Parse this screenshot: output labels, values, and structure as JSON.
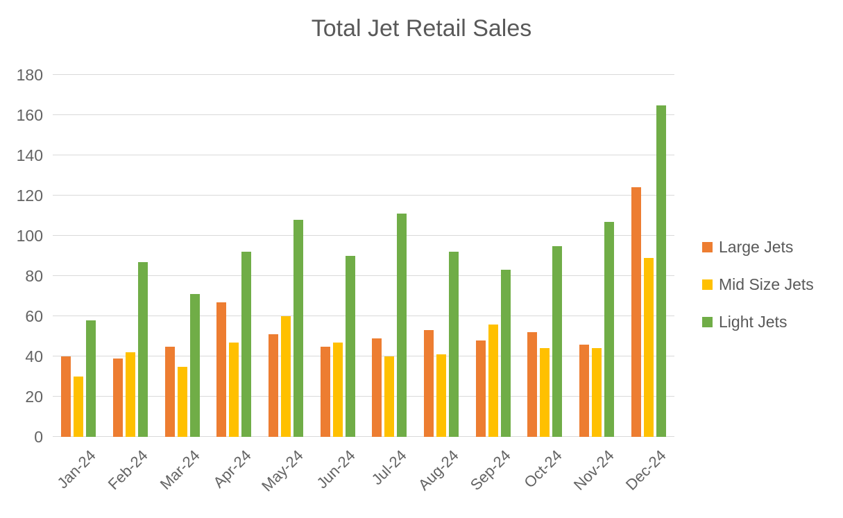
{
  "chart_data": {
    "type": "bar",
    "title": "Total Jet Retail Sales",
    "xlabel": "",
    "ylabel": "",
    "categories": [
      "Jan-24",
      "Feb-24",
      "Mar-24",
      "Apr-24",
      "May-24",
      "Jun-24",
      "Jul-24",
      "Aug-24",
      "Sep-24",
      "Oct-24",
      "Nov-24",
      "Dec-24"
    ],
    "series": [
      {
        "name": "Large Jets",
        "color": "#ED7D31",
        "values": [
          40,
          39,
          45,
          67,
          51,
          45,
          49,
          53,
          48,
          52,
          46,
          124
        ]
      },
      {
        "name": "Mid Size Jets",
        "color": "#FFC000",
        "values": [
          30,
          42,
          35,
          47,
          60,
          47,
          40,
          41,
          56,
          44,
          44,
          89
        ]
      },
      {
        "name": "Light Jets",
        "color": "#70AD47",
        "values": [
          58,
          87,
          71,
          92,
          108,
          90,
          111,
          92,
          83,
          95,
          107,
          165
        ]
      }
    ],
    "ylim": [
      0,
      180
    ],
    "yticks": [
      0,
      20,
      40,
      60,
      80,
      100,
      120,
      140,
      160,
      180
    ],
    "grid": true,
    "legend_position": "right",
    "colors": {
      "text": "#595959",
      "axis_text": "#636363",
      "gridline": "#D9D9D9",
      "background": "#FFFFFF"
    }
  }
}
